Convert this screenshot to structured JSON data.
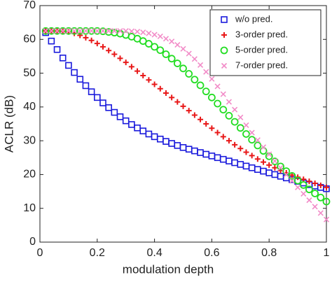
{
  "chart_data": {
    "type": "scatter",
    "xlabel": "modulation depth",
    "ylabel": "ACLR (dB)",
    "x": [
      0.02,
      0.04,
      0.06,
      0.08,
      0.1,
      0.12,
      0.14,
      0.16,
      0.18,
      0.2,
      0.22,
      0.24,
      0.26,
      0.28,
      0.3,
      0.32,
      0.34,
      0.36,
      0.38,
      0.4,
      0.42,
      0.44,
      0.46,
      0.48,
      0.5,
      0.52,
      0.54,
      0.56,
      0.58,
      0.6,
      0.62,
      0.64,
      0.66,
      0.68,
      0.7,
      0.72,
      0.74,
      0.76,
      0.78,
      0.8,
      0.82,
      0.84,
      0.86,
      0.88,
      0.9,
      0.92,
      0.94,
      0.96,
      0.98,
      1
    ],
    "series": [
      {
        "name": "w/o pred.",
        "color": "#1a1adc",
        "marker": "square",
        "values": [
          62,
          59.5,
          57,
          54.5,
          52.3,
          50.2,
          48.2,
          46.3,
          44.5,
          42.8,
          41.2,
          39.8,
          38.4,
          37.1,
          35.9,
          34.8,
          33.8,
          32.9,
          32,
          31.2,
          30.5,
          29.8,
          29.2,
          28.6,
          28,
          27.5,
          27,
          26.5,
          26,
          25.5,
          25,
          24.5,
          24,
          23.5,
          23,
          22.5,
          22,
          21.5,
          21,
          20.5,
          20,
          19.5,
          19,
          18.5,
          18,
          17.5,
          17,
          16.6,
          16.2,
          15.8
        ]
      },
      {
        "name": "3-order pred.",
        "color": "#e81818",
        "marker": "plus",
        "values": [
          62.5,
          62.5,
          62.5,
          62.4,
          62.2,
          61.8,
          61.2,
          60.5,
          59.7,
          58.8,
          57.8,
          56.7,
          55.6,
          54.4,
          53.2,
          51.9,
          50.6,
          49.3,
          48,
          46.7,
          45.4,
          44.1,
          42.8,
          41.5,
          40.2,
          38.9,
          37.6,
          36.3,
          35,
          33.7,
          32.4,
          31.2,
          30,
          28.8,
          27.7,
          26.6,
          25.6,
          24.6,
          23.7,
          22.8,
          22,
          21.2,
          20.5,
          19.8,
          19.2,
          18.6,
          18,
          17.4,
          16.8,
          16.2
        ]
      },
      {
        "name": "5-order pred.",
        "color": "#22dd22",
        "marker": "circle",
        "values": [
          62.5,
          62.5,
          62.5,
          62.5,
          62.5,
          62.5,
          62.5,
          62.5,
          62.5,
          62.5,
          62.4,
          62.2,
          62,
          61.7,
          61.3,
          60.8,
          60.2,
          59.5,
          58.7,
          57.8,
          56.8,
          55.6,
          54.3,
          52.9,
          51.4,
          49.8,
          48.1,
          46.4,
          44.6,
          42.8,
          41,
          39.2,
          37.4,
          35.6,
          33.8,
          32,
          30.3,
          28.6,
          27,
          25.4,
          23.9,
          22.4,
          21,
          19.6,
          18.2,
          16.9,
          15.6,
          14.4,
          13.2,
          12
        ]
      },
      {
        "name": "7-order pred.",
        "color": "#f28cc8",
        "marker": "x",
        "values": [
          62.5,
          62.5,
          62.5,
          62.5,
          62.5,
          62.5,
          62.5,
          62.5,
          62.5,
          62.5,
          62.5,
          62.5,
          62.5,
          62.5,
          62.5,
          62.4,
          62.3,
          62.1,
          61.8,
          61.4,
          60.9,
          60.2,
          59.4,
          58.4,
          57.2,
          55.8,
          54.2,
          52.4,
          50.4,
          48.3,
          46.1,
          43.8,
          41.5,
          39.2,
          36.9,
          34.6,
          32.4,
          30.2,
          28.1,
          26,
          24,
          22,
          20,
          18.1,
          16.2,
          14.3,
          12.4,
          10.5,
          8.6,
          6.7
        ]
      }
    ],
    "xlim": [
      0,
      1
    ],
    "xticks": [
      0,
      0.2,
      0.4,
      0.6,
      0.8,
      1
    ],
    "ylim": [
      0,
      70
    ],
    "yticks": [
      0,
      10,
      20,
      30,
      40,
      50,
      60,
      70
    ],
    "legend": "top-right"
  }
}
